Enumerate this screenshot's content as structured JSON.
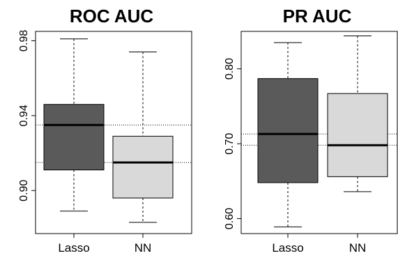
{
  "chart_data": [
    {
      "type": "box",
      "title": "ROC AUC",
      "categories": [
        "Lasso",
        "NN"
      ],
      "ylim": [
        0.877,
        0.985
      ],
      "yticks": [
        0.9,
        0.94,
        0.98
      ],
      "ytick_labels": [
        "0.90",
        "0.94",
        "0.98"
      ],
      "boxes": [
        {
          "name": "Lasso",
          "min": 0.889,
          "q1": 0.911,
          "median": 0.935,
          "q3": 0.946,
          "max": 0.981,
          "color": "#5a5a5a"
        },
        {
          "name": "NN",
          "min": 0.883,
          "q1": 0.896,
          "median": 0.915,
          "q3": 0.929,
          "max": 0.974,
          "color": "#d9d9d9"
        }
      ],
      "reference_lines": [
        0.935,
        0.915
      ]
    },
    {
      "type": "box",
      "title": "PR AUC",
      "categories": [
        "Lasso",
        "NN"
      ],
      "ylim": [
        0.58,
        0.85
      ],
      "yticks": [
        0.6,
        0.7,
        0.8
      ],
      "ytick_labels": [
        "0.60",
        "0.70",
        "0.80"
      ],
      "boxes": [
        {
          "name": "Lasso",
          "min": 0.589,
          "q1": 0.648,
          "median": 0.713,
          "q3": 0.787,
          "max": 0.835,
          "color": "#5a5a5a"
        },
        {
          "name": "NN",
          "min": 0.636,
          "q1": 0.656,
          "median": 0.698,
          "q3": 0.767,
          "max": 0.844,
          "color": "#d9d9d9"
        }
      ],
      "reference_lines": [
        0.713,
        0.698
      ]
    }
  ]
}
